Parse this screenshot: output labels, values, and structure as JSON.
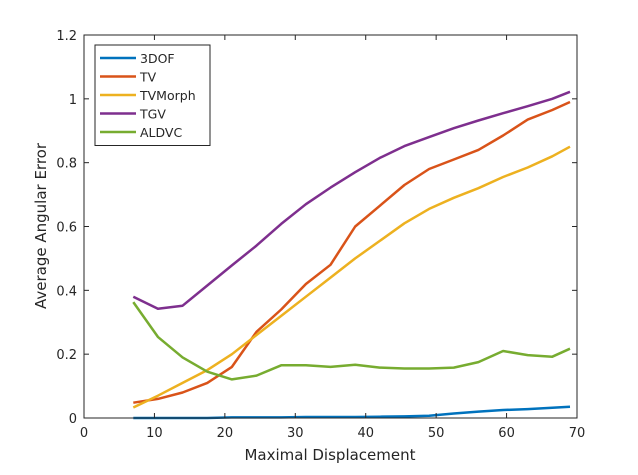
{
  "chart_data": {
    "type": "line",
    "title": "",
    "xlabel": "Maximal Displacement",
    "ylabel": "Average Angular Error",
    "xlim": [
      0,
      70
    ],
    "ylim": [
      0,
      1.2
    ],
    "xticks": [
      0,
      10,
      20,
      30,
      40,
      50,
      60,
      70
    ],
    "yticks": [
      0,
      0.2,
      0.4,
      0.6,
      0.8,
      1,
      1.2
    ],
    "ytick_labels": [
      "0",
      "0.2",
      "0.4",
      "0.6",
      "0.8",
      "1",
      "1.2"
    ],
    "grid": false,
    "legend_position": "top-left",
    "x": [
      7,
      10.5,
      14,
      17.5,
      21,
      24.5,
      28,
      31.5,
      35,
      38.5,
      42,
      45.5,
      49,
      52.5,
      56,
      59.5,
      63,
      66.5,
      69
    ],
    "series": [
      {
        "name": "3DOF",
        "color": "#0072BD",
        "values": [
          0,
          0,
          0,
          0,
          0.002,
          0.002,
          0.002,
          0.003,
          0.003,
          0.003,
          0.004,
          0.005,
          0.007,
          0.014,
          0.02,
          0.025,
          0.028,
          0.032,
          0.035
        ]
      },
      {
        "name": "TV",
        "color": "#D95319",
        "values": [
          0.048,
          0.06,
          0.08,
          0.11,
          0.16,
          0.27,
          0.34,
          0.42,
          0.48,
          0.6,
          0.665,
          0.73,
          0.78,
          0.81,
          0.84,
          0.885,
          0.935,
          0.965,
          0.99
        ]
      },
      {
        "name": "TVMorph",
        "color": "#EDB120",
        "values": [
          0.033,
          0.07,
          0.11,
          0.15,
          0.2,
          0.26,
          0.32,
          0.38,
          0.44,
          0.5,
          0.555,
          0.61,
          0.655,
          0.69,
          0.72,
          0.755,
          0.785,
          0.82,
          0.85
        ]
      },
      {
        "name": "TGV",
        "color": "#7E2F8E",
        "values": [
          0.38,
          0.342,
          0.352,
          0.415,
          0.478,
          0.54,
          0.608,
          0.67,
          0.722,
          0.77,
          0.815,
          0.852,
          0.88,
          0.908,
          0.932,
          0.955,
          0.977,
          1.0,
          1.022
        ]
      },
      {
        "name": "ALDVC",
        "color": "#77AC30",
        "values": [
          0.363,
          0.254,
          0.19,
          0.145,
          0.121,
          0.133,
          0.165,
          0.165,
          0.16,
          0.167,
          0.158,
          0.155,
          0.155,
          0.158,
          0.175,
          0.21,
          0.197,
          0.192,
          0.217
        ]
      }
    ]
  }
}
